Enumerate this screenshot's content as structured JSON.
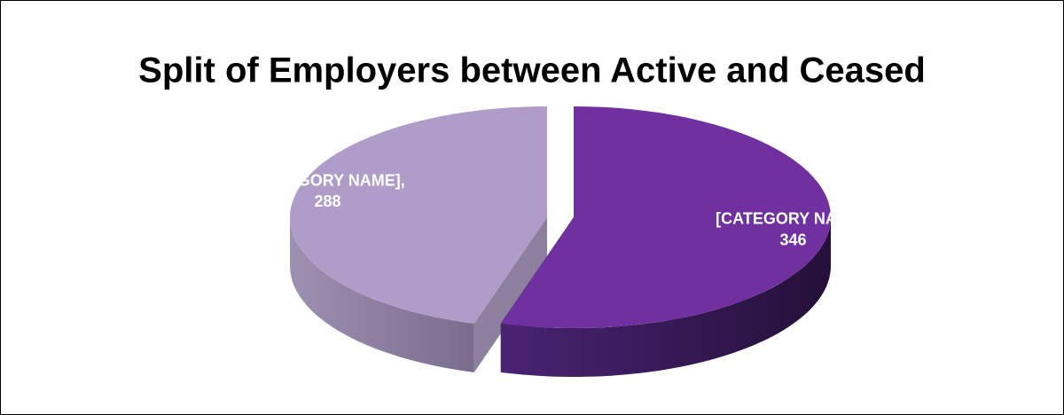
{
  "chart_data": {
    "type": "pie3d",
    "title": "Split of Employers between Active and Ceased",
    "categories": [
      "[CATEGORY NAME]",
      "[CATEGORY NAME]"
    ],
    "label_separator": ",",
    "values": [
      346,
      288
    ],
    "colors": [
      "#7030a0",
      "#b09cc8"
    ]
  }
}
